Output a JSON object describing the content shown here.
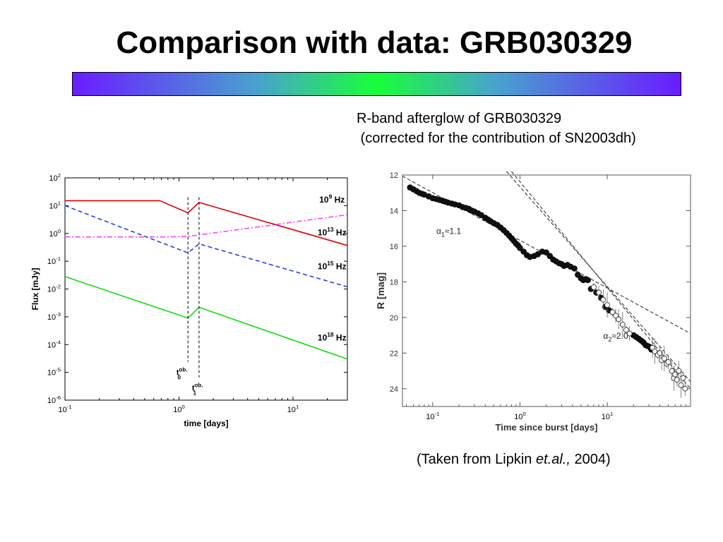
{
  "slide": {
    "title": "Comparison with data: GRB030329",
    "subtitle_line1": "R-band afterglow of GRB030329",
    "subtitle_line2": " (corrected for the contribution of SN2003dh)",
    "credit_prefix": "(Taken from Lipkin ",
    "credit_em": "et.al.,",
    "credit_suffix": " 2004)",
    "gradient_colors": [
      "#6a1cff",
      "#4aa0d0",
      "#19ff3a",
      "#4aa0d0",
      "#6a1cff"
    ]
  },
  "chart_data": [
    {
      "type": "line",
      "xlabel": "time [days]",
      "ylabel": "Flux [mJy]",
      "xscale": "log",
      "yscale": "log",
      "xlim": [
        0.1,
        30
      ],
      "ylim": [
        1e-06,
        100
      ],
      "x_ticks": [
        {
          "value": 0.1,
          "base": "10",
          "exp": "-1"
        },
        {
          "value": 1,
          "base": "10",
          "exp": "0"
        },
        {
          "value": 10,
          "base": "10",
          "exp": "1"
        }
      ],
      "y_ticks": [
        {
          "value": 100,
          "base": "10",
          "exp": "2"
        },
        {
          "value": 10,
          "base": "10",
          "exp": "1"
        },
        {
          "value": 1,
          "base": "10",
          "exp": "0"
        },
        {
          "value": 0.1,
          "base": "10",
          "exp": "-1"
        },
        {
          "value": 0.01,
          "base": "10",
          "exp": "-2"
        },
        {
          "value": 0.001,
          "base": "10",
          "exp": "-3"
        },
        {
          "value": 0.0001,
          "base": "10",
          "exp": "-4"
        },
        {
          "value": 1e-05,
          "base": "10",
          "exp": "-5"
        },
        {
          "value": 1e-06,
          "base": "10",
          "exp": "-6"
        }
      ],
      "series": [
        {
          "name": "10^9 Hz",
          "label_base": "10",
          "label_exp": "9",
          "label_unit": "Hz",
          "label_at": [
            22,
            13
          ],
          "color": "#e00000",
          "dash": "solid",
          "x": [
            0.1,
            0.68,
            1.2,
            1.5,
            30
          ],
          "y": [
            15,
            15,
            5.5,
            13,
            0.37
          ]
        },
        {
          "name": "10^13 Hz",
          "label_base": "10",
          "label_exp": "13",
          "label_unit": "Hz",
          "label_at": [
            22,
            0.85
          ],
          "color": "#ff40ff",
          "dash": "dashdot",
          "x": [
            0.1,
            0.8,
            1.2,
            30
          ],
          "y": [
            0.75,
            0.75,
            0.78,
            4.7
          ]
        },
        {
          "name": "10^15 Hz",
          "label_base": "10",
          "label_exp": "15",
          "label_unit": "Hz",
          "label_at": [
            22,
            0.052
          ],
          "color": "#2244dd",
          "dash": "dashed",
          "x": [
            0.1,
            1.2,
            1.5,
            30
          ],
          "y": [
            10,
            0.2,
            0.42,
            0.012
          ]
        },
        {
          "name": "10^18 Hz",
          "label_base": "10",
          "label_exp": "18",
          "label_unit": "Hz",
          "label_at": [
            22,
            0.00014
          ],
          "color": "#11dd11",
          "dash": "solid",
          "x": [
            0.1,
            1.2,
            1.5,
            30
          ],
          "y": [
            0.028,
            0.0009,
            0.0022,
            3e-05
          ]
        }
      ],
      "markers": [
        {
          "x": 1.2,
          "text": "t",
          "sub": "0",
          "sup": "ob.",
          "label_at": [
            0.95,
            8e-06
          ]
        },
        {
          "x": 1.5,
          "text": "t",
          "sub": "1",
          "sup": "ob.",
          "label_at": [
            1.3,
            2.2e-06
          ]
        }
      ]
    },
    {
      "type": "scatter",
      "title": "",
      "xlabel": "Time since burst [days]",
      "ylabel": "R [mag]",
      "xscale": "log",
      "xlim": [
        0.045,
        90
      ],
      "ylim": [
        12,
        25
      ],
      "y_inverted": true,
      "x_ticks": [
        {
          "value": 0.1,
          "base": "10",
          "exp": "-1"
        },
        {
          "value": 1,
          "base": "10",
          "exp": "0"
        },
        {
          "value": 10,
          "base": "10",
          "exp": "1"
        }
      ],
      "y_ticks": [
        12,
        14,
        16,
        18,
        20,
        22,
        24
      ],
      "points_dense": {
        "x": [
          0.055,
          0.06,
          0.065,
          0.07,
          0.075,
          0.08,
          0.09,
          0.1,
          0.11,
          0.12,
          0.13,
          0.14,
          0.15,
          0.165,
          0.18,
          0.2,
          0.22,
          0.24,
          0.26,
          0.28,
          0.3,
          0.33,
          0.36,
          0.4,
          0.43,
          0.46,
          0.5,
          0.55,
          0.6,
          0.65,
          0.7,
          0.75,
          0.8,
          0.85,
          0.9,
          0.95,
          1.0,
          1.1,
          1.2,
          1.3,
          1.45,
          1.6,
          1.8,
          2.0,
          2.2,
          2.4,
          2.6,
          2.8,
          3.0,
          3.2,
          3.5,
          3.8,
          4.2,
          4.6,
          5.0,
          5.3,
          5.6,
          6.0,
          6.5,
          7.5,
          8.5,
          9.5,
          10.5,
          20,
          21.5,
          23,
          24.5,
          26,
          27.5,
          29,
          30.5,
          32
        ],
        "y": [
          12.7,
          12.8,
          12.9,
          13.0,
          13.05,
          13.1,
          13.2,
          13.3,
          13.35,
          13.4,
          13.45,
          13.5,
          13.55,
          13.6,
          13.65,
          13.7,
          13.8,
          13.85,
          13.9,
          14.0,
          14.05,
          14.15,
          14.25,
          14.4,
          14.5,
          14.6,
          14.7,
          14.8,
          14.95,
          15.1,
          15.25,
          15.4,
          15.55,
          15.7,
          15.85,
          15.95,
          16.1,
          16.3,
          16.5,
          16.6,
          16.55,
          16.45,
          16.3,
          16.35,
          16.55,
          16.75,
          16.85,
          16.95,
          17.0,
          17.1,
          17.05,
          17.15,
          17.25,
          17.6,
          17.8,
          17.9,
          17.85,
          17.9,
          18.4,
          18.6,
          18.9,
          19.4,
          19.6,
          21.0,
          21.1,
          21.2,
          21.3,
          21.4,
          21.55,
          21.6,
          21.65,
          21.8
        ]
      },
      "points_open": {
        "x": [
          7.0,
          8.0,
          9.0,
          10.0,
          11.5,
          12.5,
          13.5,
          15.0,
          16.5,
          18.0,
          33,
          35,
          38,
          40,
          42,
          45,
          48,
          50,
          55,
          58,
          60,
          63,
          66,
          70,
          74,
          78
        ],
        "y": [
          18.3,
          18.6,
          19.0,
          19.3,
          19.7,
          19.9,
          20.1,
          20.4,
          20.7,
          20.9,
          21.7,
          21.9,
          22.1,
          22.0,
          22.4,
          22.3,
          22.6,
          22.5,
          23.0,
          23.4,
          23.2,
          23.5,
          23.0,
          23.8,
          23.4,
          24.0
        ]
      },
      "fit_lines": [
        {
          "label_base": "α",
          "label_sub": "1",
          "label_rest": "≈1.1",
          "label_at": [
            0.11,
            15.3
          ],
          "x": [
            0.045,
            90
          ],
          "y": [
            12.06,
            20.9
          ]
        },
        {
          "label_base": "α",
          "label_sub": "2",
          "label_rest": "≈2.0",
          "label_at": [
            9.0,
            21.2
          ],
          "x": [
            0.8,
            90
          ],
          "y": [
            11.8,
            24.0
          ]
        },
        {
          "label_base": "",
          "label_sub": "",
          "label_rest": "",
          "label_at": null,
          "x": [
            0.7,
            90
          ],
          "y": [
            11.8,
            23.6
          ]
        }
      ]
    }
  ]
}
